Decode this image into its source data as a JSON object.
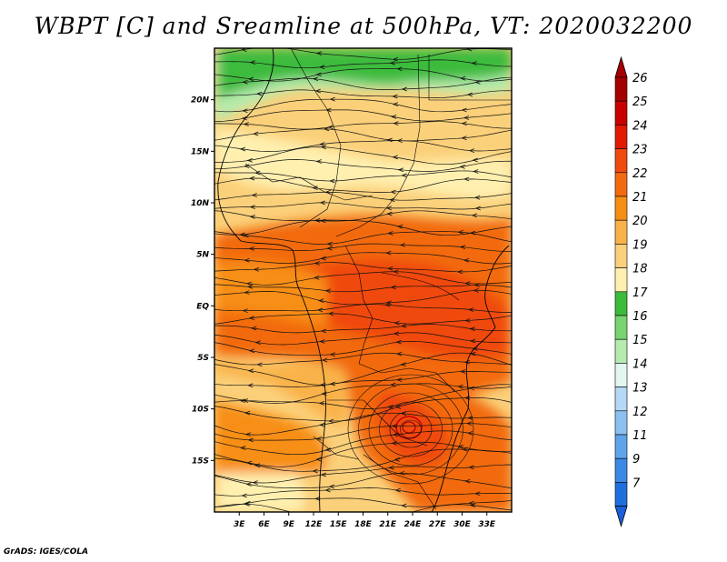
{
  "title": "WBPT [C] and Sreamline at 500hPa, VT: 2020032200",
  "footer": "GrADS: IGES/COLA",
  "map": {
    "lon_range": [
      0,
      36
    ],
    "lat_range": [
      -20,
      25
    ],
    "lon_ticks": [
      {
        "value": 3,
        "label": "3E"
      },
      {
        "value": 6,
        "label": "6E"
      },
      {
        "value": 9,
        "label": "9E"
      },
      {
        "value": 12,
        "label": "12E"
      },
      {
        "value": 15,
        "label": "15E"
      },
      {
        "value": 18,
        "label": "18E"
      },
      {
        "value": 21,
        "label": "21E"
      },
      {
        "value": 24,
        "label": "24E"
      },
      {
        "value": 27,
        "label": "27E"
      },
      {
        "value": 30,
        "label": "30E"
      },
      {
        "value": 33,
        "label": "33E"
      }
    ],
    "lat_ticks": [
      {
        "value": 20,
        "label": "20N"
      },
      {
        "value": 15,
        "label": "15N"
      },
      {
        "value": 10,
        "label": "10N"
      },
      {
        "value": 5,
        "label": "5N"
      },
      {
        "value": 0,
        "label": "EQ"
      },
      {
        "value": -5,
        "label": "5S"
      },
      {
        "value": -10,
        "label": "10S"
      },
      {
        "value": -15,
        "label": "15S"
      }
    ]
  },
  "colorbar": {
    "levels": [
      {
        "label": "26",
        "color": "#a50000"
      },
      {
        "label": "25",
        "color": "#c80000"
      },
      {
        "label": "24",
        "color": "#e11a00"
      },
      {
        "label": "23",
        "color": "#f04a0c"
      },
      {
        "label": "22",
        "color": "#f26a0f"
      },
      {
        "label": "21",
        "color": "#f78e14"
      },
      {
        "label": "20",
        "color": "#f9b24a"
      },
      {
        "label": "19",
        "color": "#fbd07a"
      },
      {
        "label": "18",
        "color": "#fff0b0"
      },
      {
        "label": "17",
        "color": "#3dbb3d"
      },
      {
        "label": "16",
        "color": "#77d471"
      },
      {
        "label": "15",
        "color": "#b6ebae"
      },
      {
        "label": "14",
        "color": "#e2f7f0"
      },
      {
        "label": "13",
        "color": "#b4d8f6"
      },
      {
        "label": "12",
        "color": "#8cc0f0"
      },
      {
        "label": "11",
        "color": "#5fa4ea"
      },
      {
        "label": "9",
        "color": "#3c8ae6"
      },
      {
        "label": "7",
        "color": "#1f6fde"
      }
    ],
    "top_arrow_color": "#a50000",
    "bottom_arrow_color": "#1a60d8"
  }
}
